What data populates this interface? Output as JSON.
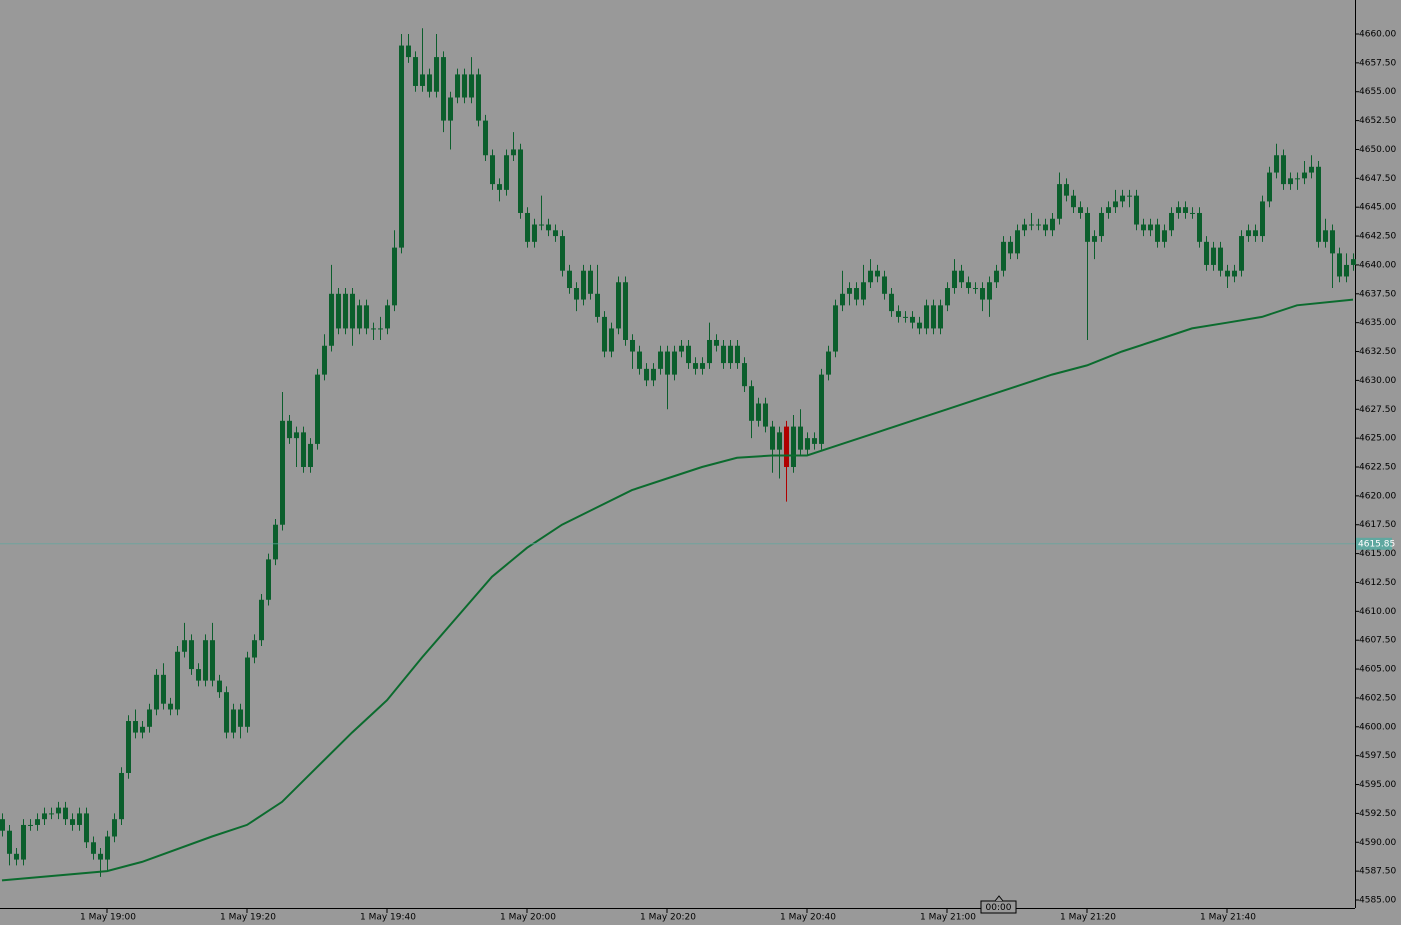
{
  "chart_data": {
    "type": "candlestick",
    "candles": [
      [
        4592,
        4592.5,
        4590.5,
        4591
      ],
      [
        4591,
        4591.5,
        4588,
        4589
      ],
      [
        4589,
        4589.5,
        4588,
        4588.5
      ],
      [
        4588.5,
        4592,
        4588,
        4591.5
      ],
      [
        4591.5,
        4592,
        4591,
        4591.5
      ],
      [
        4591.5,
        4592.5,
        4591,
        4592
      ],
      [
        4592,
        4593,
        4591.5,
        4592.5
      ],
      [
        4592.5,
        4593,
        4592,
        4592.5
      ],
      [
        4592.5,
        4593.5,
        4592,
        4593
      ],
      [
        4593,
        4593.5,
        4591.5,
        4592
      ],
      [
        4592,
        4592.5,
        4591,
        4591.5
      ],
      [
        4591.5,
        4593,
        4591,
        4592.5
      ],
      [
        4592.5,
        4593,
        4589.5,
        4590
      ],
      [
        4590,
        4590.5,
        4588.5,
        4589
      ],
      [
        4589,
        4589.5,
        4587,
        4588.5
      ],
      [
        4588.5,
        4591,
        4587.5,
        4590.5
      ],
      [
        4590.5,
        4592.5,
        4590,
        4592
      ],
      [
        4592,
        4596.5,
        4591.5,
        4596
      ],
      [
        4596,
        4601,
        4595.5,
        4600.5
      ],
      [
        4600.5,
        4601.5,
        4599,
        4599.5
      ],
      [
        4599.5,
        4600.5,
        4599,
        4600
      ],
      [
        4600,
        4602,
        4599.5,
        4601.5
      ],
      [
        4601.5,
        4605,
        4601,
        4604.5
      ],
      [
        4604.5,
        4605.5,
        4601.5,
        4602
      ],
      [
        4602,
        4602.5,
        4601,
        4601.5
      ],
      [
        4601.5,
        4607,
        4601,
        4606.5
      ],
      [
        4606.5,
        4609,
        4606,
        4607.5
      ],
      [
        4607.5,
        4608,
        4604.5,
        4605
      ],
      [
        4605,
        4605.5,
        4603.5,
        4604
      ],
      [
        4604,
        4608,
        4603.5,
        4607.5
      ],
      [
        4607.5,
        4609,
        4603.5,
        4604
      ],
      [
        4604,
        4604.5,
        4602.5,
        4603
      ],
      [
        4603,
        4603.5,
        4599,
        4599.5
      ],
      [
        4599.5,
        4602,
        4599,
        4601.5
      ],
      [
        4601.5,
        4602,
        4599,
        4600
      ],
      [
        4600,
        4606.5,
        4599.5,
        4606
      ],
      [
        4606,
        4608,
        4605.5,
        4607.5
      ],
      [
        4607.5,
        4611.5,
        4607,
        4611
      ],
      [
        4611,
        4615,
        4610.5,
        4614.5
      ],
      [
        4614.5,
        4618,
        4614,
        4617.5
      ],
      [
        4617.5,
        4629,
        4617,
        4626.5
      ],
      [
        4626.5,
        4627,
        4624.5,
        4625
      ],
      [
        4625,
        4626,
        4622.5,
        4625.5
      ],
      [
        4625.5,
        4626,
        4622,
        4622.5
      ],
      [
        4622.5,
        4625,
        4622,
        4624.5
      ],
      [
        4624.5,
        4631,
        4624,
        4630.5
      ],
      [
        4630.5,
        4634,
        4630,
        4633
      ],
      [
        4633,
        4640,
        4632.5,
        4637.5
      ],
      [
        4637.5,
        4638,
        4634,
        4634.5
      ],
      [
        4634.5,
        4638,
        4634,
        4637.5
      ],
      [
        4637.5,
        4638,
        4633,
        4634.5
      ],
      [
        4634.5,
        4637,
        4634,
        4636.5
      ],
      [
        4636.5,
        4637,
        4634,
        4634.5
      ],
      [
        4634.5,
        4635,
        4633.5,
        4634.5
      ],
      [
        4634.5,
        4635.5,
        4633.5,
        4634.5
      ],
      [
        4634.5,
        4637,
        4634,
        4636.5
      ],
      [
        4636.5,
        4643,
        4636,
        4641.5
      ],
      [
        4641.5,
        4660,
        4641,
        4659
      ],
      [
        4659,
        4660,
        4657.5,
        4658
      ],
      [
        4658,
        4658.5,
        4655,
        4655.5
      ],
      [
        4655.5,
        4660.5,
        4655,
        4656.5
      ],
      [
        4656.5,
        4657,
        4654.5,
        4655
      ],
      [
        4655,
        4660,
        4654.5,
        4658
      ],
      [
        4658,
        4658.5,
        4651.5,
        4652.5
      ],
      [
        4652.5,
        4655,
        4650,
        4654.5
      ],
      [
        4654.5,
        4657,
        4654,
        4656.5
      ],
      [
        4656.5,
        4657,
        4654,
        4654.5
      ],
      [
        4654.5,
        4658,
        4654,
        4656.5
      ],
      [
        4656.5,
        4657,
        4652,
        4652.5
      ],
      [
        4652.5,
        4653,
        4649,
        4649.5
      ],
      [
        4649.5,
        4650,
        4646.5,
        4647
      ],
      [
        4647,
        4647.5,
        4645.5,
        4646.5
      ],
      [
        4646.5,
        4650,
        4646,
        4649.5
      ],
      [
        4649.5,
        4651.5,
        4649,
        4650
      ],
      [
        4650,
        4650.5,
        4644,
        4644.5
      ],
      [
        4644.5,
        4645,
        4641.5,
        4642
      ],
      [
        4642,
        4644,
        4641.5,
        4643.5
      ],
      [
        4643.5,
        4646,
        4643,
        4643.5
      ],
      [
        4643.5,
        4644,
        4642.5,
        4643
      ],
      [
        4643,
        4643.5,
        4642,
        4642.5
      ],
      [
        4642.5,
        4643,
        4639,
        4639.5
      ],
      [
        4639.5,
        4640,
        4637.5,
        4638
      ],
      [
        4638,
        4638.5,
        4636,
        4637
      ],
      [
        4637,
        4640,
        4636.5,
        4639.5
      ],
      [
        4639.5,
        4640,
        4637,
        4637.5
      ],
      [
        4637.5,
        4640,
        4635,
        4635.5
      ],
      [
        4635.5,
        4636,
        4632,
        4632.5
      ],
      [
        4632.5,
        4635,
        4632,
        4634.5
      ],
      [
        4634.5,
        4639,
        4634,
        4638.5
      ],
      [
        4638.5,
        4639,
        4633,
        4633.5
      ],
      [
        4633.5,
        4634,
        4631,
        4632.5
      ],
      [
        4632.5,
        4633,
        4630.5,
        4631
      ],
      [
        4631,
        4631.5,
        4629.5,
        4630
      ],
      [
        4630,
        4631.5,
        4629.5,
        4631
      ],
      [
        4631,
        4633,
        4630.5,
        4632.5
      ],
      [
        4632.5,
        4633,
        4627.5,
        4630.5
      ],
      [
        4630.5,
        4633,
        4630,
        4632.5
      ],
      [
        4632.5,
        4633.5,
        4632,
        4633
      ],
      [
        4633,
        4633.5,
        4631,
        4631.5
      ],
      [
        4631.5,
        4632,
        4630.5,
        4631
      ],
      [
        4631,
        4632,
        4630.5,
        4631.5
      ],
      [
        4631.5,
        4635,
        4631,
        4633.5
      ],
      [
        4633.5,
        4634,
        4632.5,
        4633
      ],
      [
        4633,
        4633.5,
        4631,
        4631.5
      ],
      [
        4631.5,
        4633.5,
        4631,
        4633
      ],
      [
        4633,
        4633.5,
        4631,
        4631.5
      ],
      [
        4631.5,
        4632,
        4629,
        4629.5
      ],
      [
        4629.5,
        4630,
        4625,
        4626.5
      ],
      [
        4626.5,
        4628.5,
        4626,
        4628
      ],
      [
        4628,
        4628.5,
        4625.5,
        4626
      ],
      [
        4626,
        4626.5,
        4622,
        4624
      ],
      [
        4624,
        4626,
        4621.5,
        4625.5
      ],
      [
        4626,
        4626.5,
        4619.5,
        4622.5
      ],
      [
        4622.5,
        4627,
        4622,
        4626
      ],
      [
        4626,
        4627.5,
        4623.5,
        4624
      ],
      [
        4624,
        4625.5,
        4623.5,
        4625
      ],
      [
        4625,
        4625.5,
        4624,
        4624.5
      ],
      [
        4624.5,
        4631,
        4624,
        4630.5
      ],
      [
        4630.5,
        4633,
        4630,
        4632.5
      ],
      [
        4632.5,
        4637,
        4632,
        4636.5
      ],
      [
        4636.5,
        4639.5,
        4636,
        4637.5
      ],
      [
        4637.5,
        4638.5,
        4636.5,
        4638
      ],
      [
        4638,
        4638.5,
        4636.5,
        4637
      ],
      [
        4637,
        4640,
        4636.5,
        4638.5
      ],
      [
        4638.5,
        4640.5,
        4638,
        4639.5
      ],
      [
        4639.5,
        4640,
        4638.5,
        4639
      ],
      [
        4639,
        4639.5,
        4637,
        4637.5
      ],
      [
        4637.5,
        4638,
        4635.5,
        4636
      ],
      [
        4636,
        4636.5,
        4635,
        4635.5
      ],
      [
        4635.5,
        4636,
        4635,
        4635.5
      ],
      [
        4635.5,
        4636,
        4634.5,
        4635
      ],
      [
        4635,
        4635.5,
        4634,
        4634.5
      ],
      [
        4634.5,
        4637,
        4634,
        4636.5
      ],
      [
        4636.5,
        4637,
        4634,
        4634.5
      ],
      [
        4634.5,
        4637,
        4634,
        4636.5
      ],
      [
        4636.5,
        4638.5,
        4636,
        4638
      ],
      [
        4638,
        4640.5,
        4637.5,
        4639.5
      ],
      [
        4639.5,
        4640,
        4638,
        4638.5
      ],
      [
        4638.5,
        4639,
        4637.5,
        4638
      ],
      [
        4638,
        4638.5,
        4637.5,
        4638
      ],
      [
        4638,
        4638.5,
        4636,
        4637
      ],
      [
        4637,
        4639,
        4635.5,
        4638.5
      ],
      [
        4638.5,
        4640,
        4638,
        4639.5
      ],
      [
        4639.5,
        4642.5,
        4639,
        4642
      ],
      [
        4642,
        4642.5,
        4640.5,
        4641
      ],
      [
        4641,
        4643.5,
        4640.5,
        4643
      ],
      [
        4643,
        4644,
        4642.5,
        4643.5
      ],
      [
        4643.5,
        4644.5,
        4643,
        4643.5
      ],
      [
        4643.5,
        4644,
        4643,
        4643.5
      ],
      [
        4643.5,
        4644,
        4642.5,
        4643
      ],
      [
        4643,
        4644.5,
        4642.5,
        4644
      ],
      [
        4644,
        4648,
        4643.5,
        4647
      ],
      [
        4647,
        4647.5,
        4645.5,
        4646
      ],
      [
        4646,
        4646.5,
        4644.5,
        4645
      ],
      [
        4645,
        4645.5,
        4644,
        4644.5
      ],
      [
        4644.5,
        4645,
        4633.5,
        4642
      ],
      [
        4642,
        4643,
        4640.5,
        4642.5
      ],
      [
        4642.5,
        4645,
        4642,
        4644.5
      ],
      [
        4644.5,
        4645.5,
        4644,
        4645
      ],
      [
        4645,
        4646.5,
        4644.5,
        4645.5
      ],
      [
        4645.5,
        4646.5,
        4645,
        4646
      ],
      [
        4646,
        4646.5,
        4645,
        4646
      ],
      [
        4646,
        4646.5,
        4643,
        4643.5
      ],
      [
        4643.5,
        4644,
        4642.5,
        4643
      ],
      [
        4643,
        4644,
        4642.5,
        4643.5
      ],
      [
        4643.5,
        4644,
        4641.5,
        4642
      ],
      [
        4642,
        4643.5,
        4641.5,
        4643
      ],
      [
        4643,
        4645,
        4642.5,
        4644.5
      ],
      [
        4644.5,
        4645.5,
        4644,
        4645
      ],
      [
        4645,
        4645.5,
        4644,
        4644.5
      ],
      [
        4644.5,
        4645,
        4644,
        4644.5
      ],
      [
        4644.5,
        4645,
        4641.5,
        4642
      ],
      [
        4642,
        4642.5,
        4639.5,
        4640
      ],
      [
        4640,
        4642,
        4639.5,
        4641.5
      ],
      [
        4641.5,
        4642,
        4639,
        4639.5
      ],
      [
        4639.5,
        4640,
        4638,
        4639
      ],
      [
        4639,
        4640,
        4638.5,
        4639.5
      ],
      [
        4639.5,
        4643,
        4639,
        4642.5
      ],
      [
        4642.5,
        4643.5,
        4642,
        4643
      ],
      [
        4643,
        4643.5,
        4642,
        4642.5
      ],
      [
        4642.5,
        4646,
        4642,
        4645.5
      ],
      [
        4645.5,
        4648.5,
        4645,
        4648
      ],
      [
        4648,
        4650.5,
        4647.5,
        4649.5
      ],
      [
        4649.5,
        4650,
        4646.5,
        4647
      ],
      [
        4647,
        4648,
        4646.5,
        4647.5
      ],
      [
        4647.5,
        4648,
        4646.5,
        4647.5
      ],
      [
        4647.5,
        4649,
        4647,
        4648
      ],
      [
        4648,
        4649.5,
        4647.5,
        4648.5
      ],
      [
        4648.5,
        4649,
        4641.5,
        4642
      ],
      [
        4642,
        4644,
        4641.5,
        4643
      ],
      [
        4643,
        4643.5,
        4638,
        4641
      ],
      [
        4641,
        4641.5,
        4638.5,
        4639
      ],
      [
        4639,
        4641,
        4638.5,
        4640
      ],
      [
        4640,
        4641,
        4639.5,
        4640.5
      ]
    ],
    "candle_color": "#0b5e2c",
    "marked_candle": {
      "index": 112,
      "color": "#b00000"
    },
    "ma": {
      "color": "#0b6b2e",
      "x": [
        0,
        15,
        20,
        30,
        35,
        40,
        45,
        50,
        55,
        60,
        65,
        70,
        75,
        80,
        85,
        90,
        95,
        100,
        105,
        110,
        115,
        120,
        125,
        130,
        135,
        140,
        145,
        150,
        155,
        160,
        165,
        170,
        175,
        180,
        185,
        193
      ],
      "values": [
        4586.7,
        4587.5,
        4588.3,
        4590.5,
        4591.5,
        4593.5,
        4596.5,
        4599.5,
        4602.3,
        4606,
        4609.5,
        4613,
        4615.5,
        4617.5,
        4619,
        4620.5,
        4621.5,
        4622.5,
        4623.3,
        4623.5,
        4623.5,
        4624.5,
        4625.5,
        4626.5,
        4627.5,
        4628.5,
        4629.5,
        4630.5,
        4631.3,
        4632.5,
        4633.5,
        4634.5,
        4635,
        4635.5,
        4636.5,
        4637
      ]
    },
    "bid": {
      "value": 4615.85,
      "color": "#5fa8a0"
    },
    "timer": "00:00",
    "xlim": [
      0,
      193
    ],
    "xticks": [
      {
        "value": 15,
        "label": "1 May 19:00"
      },
      {
        "value": 35,
        "label": "1 May 19:20"
      },
      {
        "value": 55,
        "label": "1 May 19:40"
      },
      {
        "value": 75,
        "label": "1 May 20:00"
      },
      {
        "value": 95,
        "label": "1 May 20:20"
      },
      {
        "value": 115,
        "label": "1 May 20:40"
      },
      {
        "value": 135,
        "label": "1 May 21:00"
      },
      {
        "value": 155,
        "label": "1 May 21:20"
      },
      {
        "value": 175,
        "label": "1 May 21:40"
      }
    ],
    "ylim": [
      4585,
      4660
    ],
    "yticks": [
      {
        "value": 4585,
        "label": "4585.00"
      },
      {
        "value": 4587.5,
        "label": "4587.50"
      },
      {
        "value": 4590,
        "label": "4590.00"
      },
      {
        "value": 4592.5,
        "label": "4592.50"
      },
      {
        "value": 4595,
        "label": "4595.00"
      },
      {
        "value": 4597.5,
        "label": "4597.50"
      },
      {
        "value": 4600,
        "label": "4600.00"
      },
      {
        "value": 4602.5,
        "label": "4602.50"
      },
      {
        "value": 4605,
        "label": "4605.00"
      },
      {
        "value": 4607.5,
        "label": "4607.50"
      },
      {
        "value": 4610,
        "label": "4610.00"
      },
      {
        "value": 4612.5,
        "label": "4612.50"
      },
      {
        "value": 4615,
        "label": "4615.00"
      },
      {
        "value": 4617.5,
        "label": "4617.50"
      },
      {
        "value": 4620,
        "label": "4620.00"
      },
      {
        "value": 4622.5,
        "label": "4622.50"
      },
      {
        "value": 4625,
        "label": "4625.00"
      },
      {
        "value": 4627.5,
        "label": "4627.50"
      },
      {
        "value": 4630,
        "label": "4630.00"
      },
      {
        "value": 4632.5,
        "label": "4632.50"
      },
      {
        "value": 4635,
        "label": "4635.00"
      },
      {
        "value": 4637.5,
        "label": "4637.50"
      },
      {
        "value": 4640,
        "label": "4640.00"
      },
      {
        "value": 4642.5,
        "label": "4642.50"
      },
      {
        "value": 4645,
        "label": "4645.00"
      },
      {
        "value": 4647.5,
        "label": "4647.50"
      },
      {
        "value": 4650,
        "label": "4650.00"
      },
      {
        "value": 4652.5,
        "label": "4652.50"
      },
      {
        "value": 4655,
        "label": "4655.00"
      },
      {
        "value": 4657.5,
        "label": "4657.50"
      },
      {
        "value": 4660,
        "label": "4660.00"
      }
    ]
  }
}
